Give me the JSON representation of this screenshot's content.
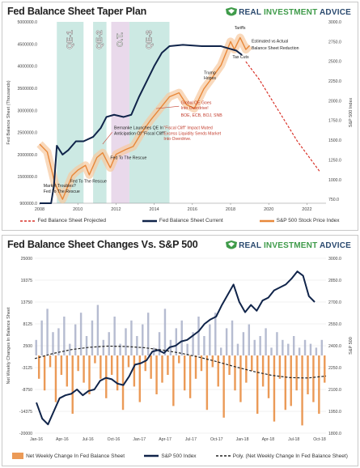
{
  "panel1": {
    "title": "Fed Balance Sheet Taper Plan",
    "brand": {
      "prefix": "REAL ",
      "accent": "INVESTMENT",
      "suffix": " ADVICE"
    },
    "chart_data": {
      "type": "line",
      "ylabel_left": "Fed Balance Sheet (Thousands)",
      "ylabel_right": "S&P 500 Index",
      "xlim": [
        2008,
        2023
      ],
      "ylim_left": [
        900000,
        5000000
      ],
      "ylim_right": [
        700,
        3000
      ],
      "x_ticks": [
        "2008",
        "2010",
        "2012",
        "2014",
        "2016",
        "2018",
        "2020",
        "2022"
      ],
      "y_ticks_left": [
        "900000.0",
        "1500000.0",
        "2000000.0",
        "2500000.0",
        "3000000.0",
        "3500000.0",
        "4000000.0",
        "4500000.0",
        "5000000.0"
      ],
      "y_ticks_right": [
        "750.0",
        "1000.0",
        "1250.0",
        "1500.0",
        "1750.0",
        "2000.0",
        "2250.0",
        "2500.0",
        "2750.0",
        "3000.0"
      ],
      "bands": [
        {
          "label": "QE-1",
          "start": 2008.9,
          "end": 2010.3,
          "color": "#bfe3dc"
        },
        {
          "label": "QE-2",
          "start": 2010.8,
          "end": 2011.5,
          "color": "#bfe3dc"
        },
        {
          "label": "O.T.",
          "start": 2011.75,
          "end": 2012.7,
          "color": "#e3cfe6"
        },
        {
          "label": "QE-3",
          "start": 2012.7,
          "end": 2014.8,
          "color": "#bfe3dc"
        }
      ],
      "series": [
        {
          "name": "Fed Balance Sheet Projected",
          "axis": "left",
          "color": "#d9342b",
          "dash": true,
          "x": [
            2018.8,
            2019.5,
            2020.5,
            2021.5,
            2022.7
          ],
          "y": [
            4100000,
            3700000,
            3000000,
            2300000,
            1600000
          ]
        },
        {
          "name": "Fed Balance Sheet Current",
          "axis": "left",
          "color": "#10244a",
          "x": [
            2008.0,
            2008.6,
            2008.75,
            2008.9,
            2009.2,
            2009.5,
            2009.9,
            2010.3,
            2010.8,
            2011.2,
            2011.5,
            2011.9,
            2012.4,
            2012.8,
            2013.2,
            2013.6,
            2014.0,
            2014.4,
            2014.8,
            2015.5,
            2016.5,
            2017.5,
            2017.9,
            2018.3,
            2018.6
          ],
          "y": [
            900000,
            900000,
            1300000,
            2200000,
            2000000,
            2100000,
            2300000,
            2300000,
            2400000,
            2600000,
            2850000,
            2900000,
            2850000,
            2900000,
            3300000,
            3650000,
            4000000,
            4300000,
            4450000,
            4480000,
            4450000,
            4450000,
            4400000,
            4350000,
            4250000
          ]
        },
        {
          "name": "S&P 500 Stock Price Index",
          "axis": "right",
          "color": "#e8883a",
          "x": [
            2008.0,
            2008.4,
            2008.8,
            2009.2,
            2009.7,
            2010.0,
            2010.4,
            2010.6,
            2011.0,
            2011.3,
            2011.7,
            2012.0,
            2012.5,
            2012.9,
            2013.3,
            2013.8,
            2014.3,
            2014.8,
            2015.3,
            2015.7,
            2016.1,
            2016.6,
            2017.0,
            2017.5,
            2018.0,
            2018.2,
            2018.5,
            2018.8,
            2019.0
          ],
          "y": [
            1450,
            1350,
            950,
            750,
            1050,
            1120,
            1180,
            1060,
            1280,
            1340,
            1150,
            1320,
            1380,
            1420,
            1580,
            1750,
            1900,
            2050,
            2100,
            1950,
            1900,
            2150,
            2280,
            2450,
            2750,
            2650,
            2800,
            2650,
            2700
          ]
        }
      ],
      "annotations": [
        {
          "text": "Tariffs",
          "x": 2018.2,
          "y_right": 2910,
          "color": "#222"
        },
        {
          "text": "Estimated vs Actual",
          "x": 2019.1,
          "y_right": 2740,
          "color": "#222"
        },
        {
          "text": "Balance Sheet Reduction",
          "x": 2019.1,
          "y_right": 2650,
          "color": "#222"
        },
        {
          "text": "Tax Cuts",
          "x": 2018.1,
          "y_right": 2540,
          "color": "#222"
        },
        {
          "text": "Trump",
          "x": 2016.6,
          "y_right": 2340,
          "color": "#222"
        },
        {
          "text": "Hopes",
          "x": 2016.6,
          "y_right": 2270,
          "color": "#222"
        },
        {
          "text": "Global QE Goes",
          "x": 2015.4,
          "y_right": 1960,
          "color": "#c23b2b"
        },
        {
          "text": "Into Overdrive!",
          "x": 2015.4,
          "y_right": 1890,
          "color": "#c23b2b"
        },
        {
          "text": "BOE, ECB, BOJ, SNB",
          "x": 2015.4,
          "y_right": 1800,
          "color": "#c23b2b"
        },
        {
          "text": "\"Fiscal Cliff\" Impact Muted",
          "x": 2014.5,
          "y_right": 1640,
          "color": "#c23b2b"
        },
        {
          "text": "Excess Liquidity Sends Market",
          "x": 2014.5,
          "y_right": 1570,
          "color": "#c23b2b"
        },
        {
          "text": "Into Overdrive.",
          "x": 2014.5,
          "y_right": 1500,
          "color": "#c23b2b"
        },
        {
          "text": "Bernanke Launches QE In",
          "x": 2011.9,
          "y_right": 1640,
          "color": "#222"
        },
        {
          "text": "Anticipation Of \"Fiscal Cliff\"",
          "x": 2011.9,
          "y_right": 1570,
          "color": "#222"
        },
        {
          "text": "Fed To The Rescue",
          "x": 2011.7,
          "y_right": 1260,
          "color": "#222"
        },
        {
          "text": "Fed To The Rescue",
          "x": 2009.6,
          "y_right": 960,
          "color": "#222"
        },
        {
          "text": "Market Troubles?",
          "x": 2008.2,
          "y_right": 905,
          "color": "#222"
        },
        {
          "text": "Fed To The Rescue",
          "x": 2008.2,
          "y_right": 835,
          "color": "#222"
        }
      ]
    },
    "legend": {
      "projected": "Fed Balance Sheet Projected",
      "current": "Fed Balance Sheet Current",
      "spx": "S&P 500 Stock Price Index"
    }
  },
  "panel2": {
    "title": "Fed Balance Sheet Changes Vs. S&P 500",
    "brand": {
      "prefix": "REAL ",
      "accent": "INVESTMENT",
      "suffix": " ADVICE"
    },
    "chart_data": {
      "type": "bar",
      "ylabel_left": "Net Weekly Changes In Balance Sheet",
      "ylabel_right": "S&P 500",
      "ylim_left": [
        -20000,
        25000
      ],
      "ylim_right": [
        1800,
        3000
      ],
      "x_ticks": [
        "Jan-16",
        "Apr-16",
        "Jul-16",
        "Oct-16",
        "Jan-17",
        "Apr-17",
        "Jul-17",
        "Oct-17",
        "Jan-18",
        "Apr-18",
        "Jul-18",
        "Oct-18"
      ],
      "y_ticks_left": [
        "-20000",
        "-14375",
        "-8750",
        "-3125",
        "2500",
        "8125",
        "13750",
        "19375",
        "25000"
      ],
      "y_ticks_right": [
        "1800.0",
        "1950.0",
        "2100.0",
        "2250.0",
        "2400.0",
        "2550.0",
        "2700.0",
        "2850.0",
        "3000.0"
      ],
      "bar_values": [
        4000,
        -6000,
        9000,
        -9000,
        12000,
        -3000,
        6000,
        -12000,
        7000,
        -5000,
        10000,
        -8000,
        3000,
        -15000,
        8000,
        -4000,
        11000,
        -7000,
        5000,
        -10000,
        9000,
        -2000,
        13000,
        -6000,
        4000,
        -11000,
        6000,
        -5000,
        10000,
        -9000,
        3000,
        -14000,
        7000,
        -3000,
        9000,
        -8000,
        5000,
        -12000,
        8000,
        -4000,
        11000,
        -6000,
        2000,
        -10000,
        6000,
        -7000,
        12000,
        -5000,
        4000,
        -13000,
        7000,
        -2000,
        9000,
        -9000,
        3000,
        -11000,
        6000,
        -6000,
        10000,
        -4000,
        5000,
        -14000,
        8000,
        -3000,
        11000,
        -8000,
        2000,
        -16000,
        7000,
        -5000,
        9000,
        -9000,
        3000,
        -12000,
        6000,
        -7000,
        8000,
        -4000,
        4000,
        -15000,
        5000,
        -8000,
        7000,
        -11000,
        2000,
        -17000,
        6000,
        -6000,
        4000,
        -14000,
        3000,
        -13000,
        5000,
        -9000,
        2000,
        -18000,
        4000,
        -10000,
        3000,
        -12000,
        2000,
        -15000,
        4000,
        -7000
      ],
      "series": [
        {
          "name": "Net Weekly Change In Fed Balance Sheet",
          "type": "bar",
          "axis": "left",
          "color": "#e8883a"
        },
        {
          "name": "S&P 500 Index",
          "type": "line",
          "axis": "right",
          "color": "#10244a",
          "y": [
            2010,
            1900,
            1860,
            1950,
            2040,
            2060,
            2070,
            2100,
            2060,
            2090,
            2100,
            2160,
            2180,
            2170,
            2140,
            2130,
            2190,
            2270,
            2280,
            2300,
            2360,
            2370,
            2350,
            2390,
            2400,
            2430,
            2440,
            2470,
            2500,
            2550,
            2580,
            2600,
            2680,
            2750,
            2820,
            2700,
            2630,
            2680,
            2640,
            2710,
            2730,
            2780,
            2800,
            2820,
            2860,
            2910,
            2880,
            2740,
            2700
          ]
        },
        {
          "name": "Poly. (Net Weekly Change In Fed Balance Sheet)",
          "type": "trend",
          "axis": "left",
          "color": "#222",
          "y": [
            -800,
            500,
            1500,
            2100,
            2400,
            2300,
            2000,
            1400,
            600,
            -400,
            -1600,
            -2900,
            -4100,
            -5100,
            -5700,
            -5800,
            -5300
          ]
        }
      ]
    },
    "legend": {
      "bars": "Net Weekly Change In Fed Balance Sheet",
      "spx": "S&P 500 Index",
      "poly": "Poly. (Net Weekly Change In Fed Balance Sheet)"
    }
  },
  "colors": {
    "navy": "#10244a",
    "orange": "#e8883a",
    "red": "#d9342b",
    "band_qe": "#bfe3dc",
    "band_ot": "#e3cfe6",
    "brand_blue": "#2b4a6f",
    "brand_green": "#3f9b4a"
  },
  "icons": {
    "brand_logo": "eagle-shield-icon"
  }
}
